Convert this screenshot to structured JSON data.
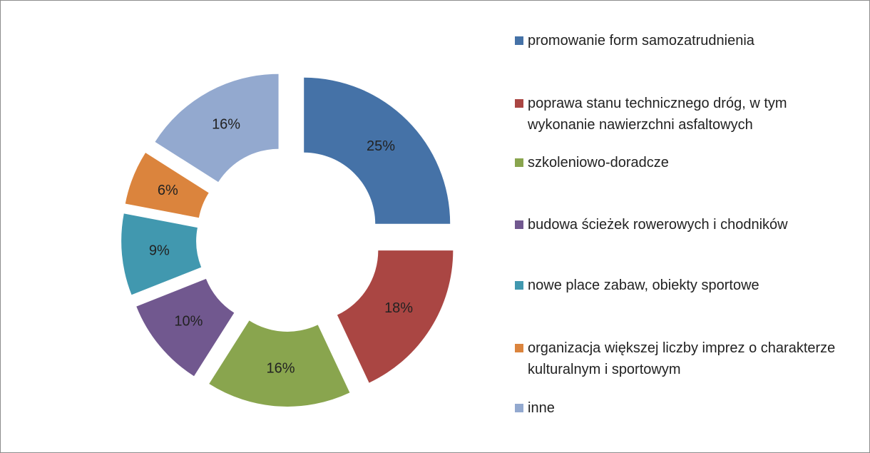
{
  "chart_data": {
    "type": "donut",
    "categories": [
      "promowanie form samozatrudnienia",
      "poprawa stanu technicznego dróg, w tym wykonanie nawierzchni asfaltowych",
      "szkoleniowo-doradcze",
      "budowa ścieżek rowerowych i chodników",
      "nowe place zabaw, obiekty sportowe",
      "organizacja większej liczby imprez o charakterze kulturalnym i sportowym",
      "inne"
    ],
    "values": [
      25,
      18,
      16,
      10,
      9,
      6,
      16
    ],
    "value_labels": [
      "25%",
      "18%",
      "16%",
      "10%",
      "9%",
      "6%",
      "16%"
    ],
    "colors": [
      "#4572a7",
      "#aa4643",
      "#89a54e",
      "#71588f",
      "#4198af",
      "#db843d",
      "#93a9cf"
    ],
    "legend": "right"
  }
}
